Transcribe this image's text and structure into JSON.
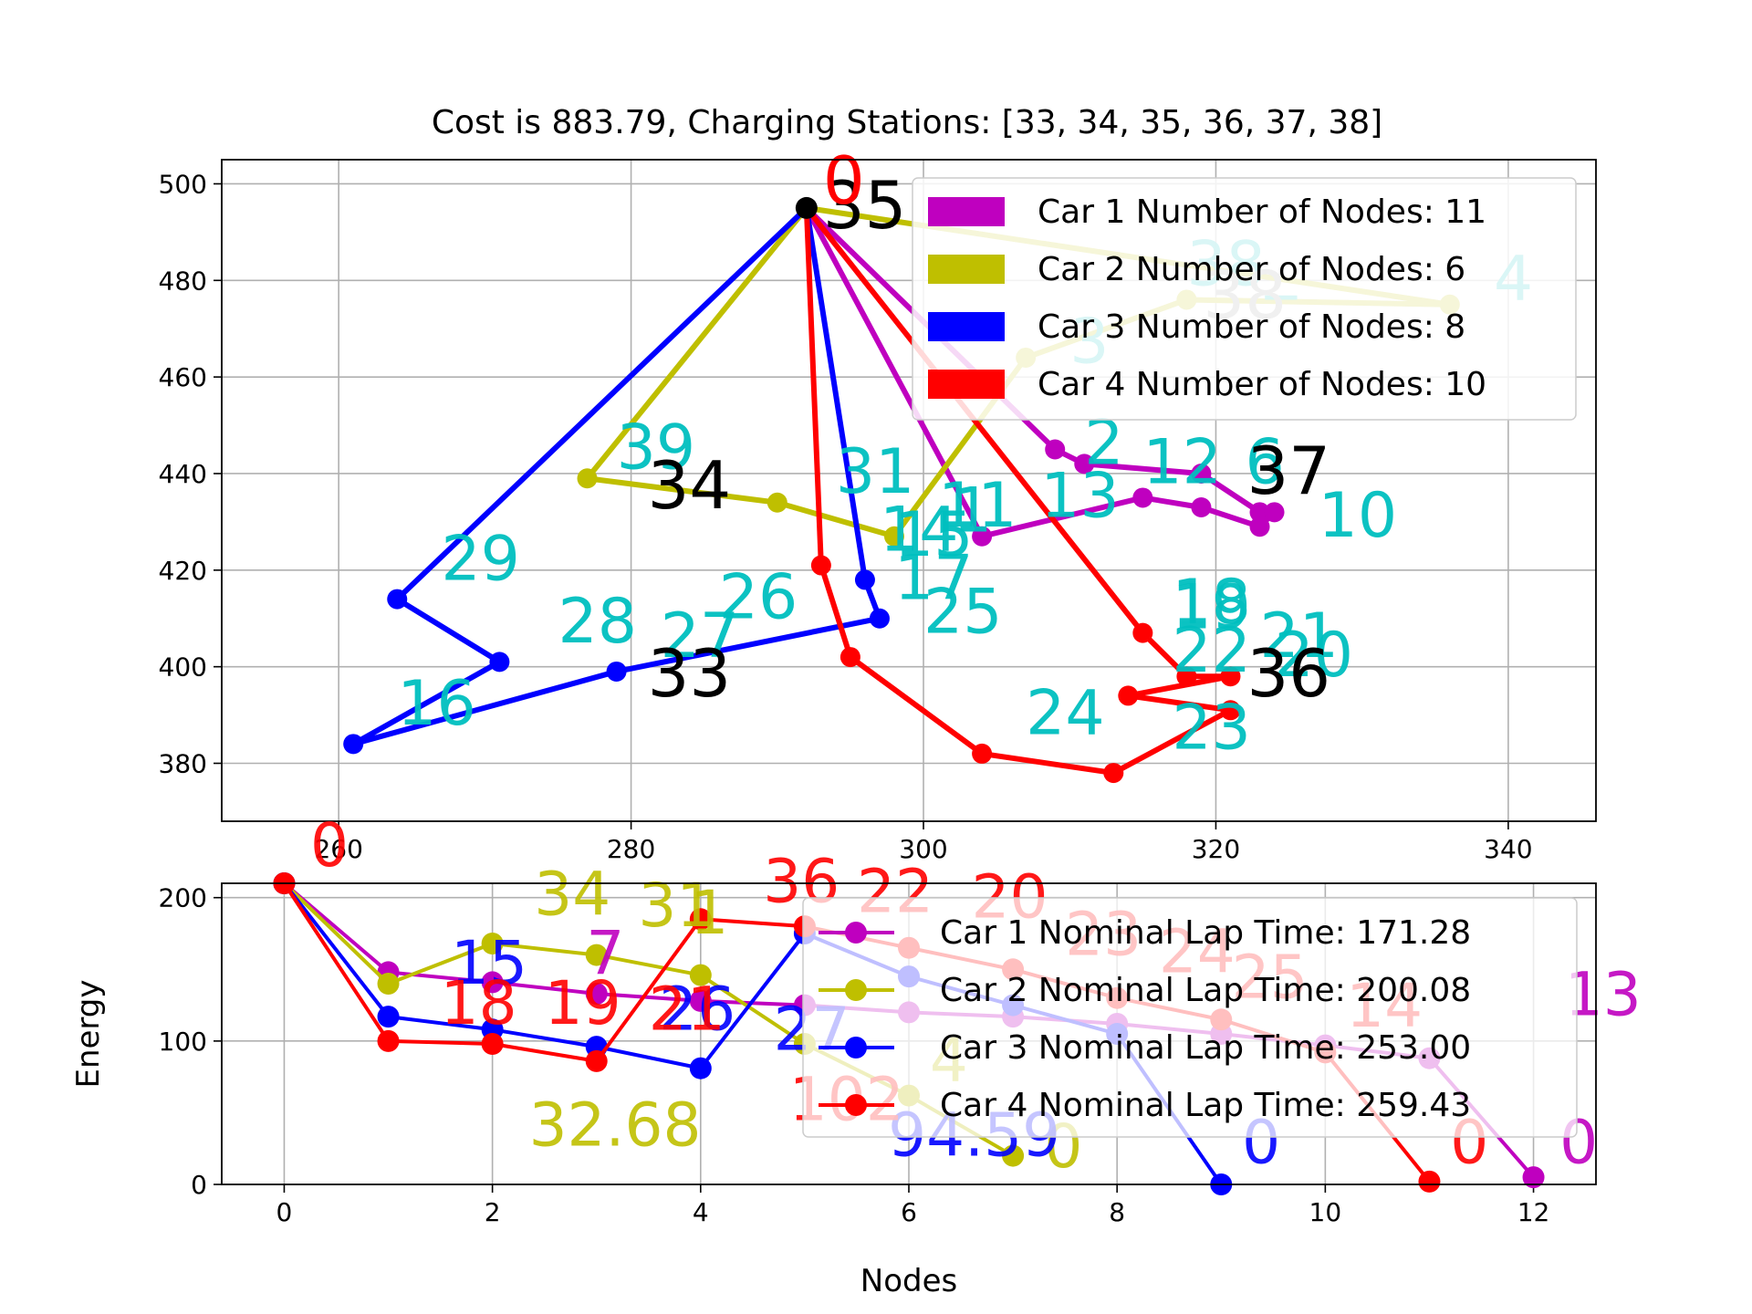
{
  "figure_title": "Cost is 883.79, Charging Stations: [33, 34, 35, 36, 37, 38]",
  "colors": {
    "car1": "#bf00bf",
    "car2": "#bfbf00",
    "car3": "#0000ff",
    "car4": "#ff0000",
    "node_label": "#00bfbf",
    "station_label": "#000000",
    "depot": "#000000",
    "grid": "#b0b0b0"
  },
  "chart_data": [
    {
      "type": "scatter",
      "title": "Cost is 883.79, Charging Stations: [33, 34, 35, 36, 37, 38]",
      "xlabel": "",
      "ylabel": "",
      "xlim": [
        252,
        346
      ],
      "ylim": [
        368,
        505
      ],
      "xticks": [
        260,
        280,
        300,
        320,
        340
      ],
      "yticks": [
        380,
        400,
        420,
        440,
        460,
        480,
        500
      ],
      "grid": true,
      "legend_position": "upper right",
      "depot": {
        "label": "0",
        "x": 292,
        "y": 495
      },
      "stations": [
        {
          "label": "33",
          "x": 280,
          "y": 398
        },
        {
          "label": "34",
          "x": 280,
          "y": 437
        },
        {
          "label": "35",
          "x": 292,
          "y": 495
        },
        {
          "label": "36",
          "x": 321,
          "y": 398
        },
        {
          "label": "37",
          "x": 321,
          "y": 440
        },
        {
          "label": "38",
          "x": 318,
          "y": 476
        }
      ],
      "series": [
        {
          "name": "Car 1 Number of Nodes: 11",
          "color_key": "car1",
          "route": [
            [
              292,
              495
            ],
            [
              309,
              445
            ],
            [
              311,
              442
            ],
            [
              319,
              440
            ],
            [
              323,
              432
            ],
            [
              324,
              432
            ],
            [
              323,
              429
            ],
            [
              319,
              433
            ],
            [
              315,
              435
            ],
            [
              304,
              427
            ],
            [
              292,
              495
            ]
          ],
          "labels": [
            {
              "t": "2",
              "x": 311,
              "y": 442
            },
            {
              "t": "12",
              "x": 315,
              "y": 438
            },
            {
              "t": "13",
              "x": 308,
              "y": 431
            },
            {
              "t": "1",
              "x": 302,
              "y": 428
            },
            {
              "t": "10",
              "x": 327,
              "y": 427
            },
            {
              "t": "6",
              "x": 322,
              "y": 438
            }
          ]
        },
        {
          "name": "Car 2 Number of Nodes: 6",
          "color_key": "car2",
          "route": [
            [
              292,
              495
            ],
            [
              336,
              475
            ],
            [
              318,
              476
            ],
            [
              307,
              464
            ],
            [
              298,
              427
            ],
            [
              290,
              434
            ],
            [
              277,
              439
            ],
            [
              292,
              495
            ]
          ],
          "labels": [
            {
              "t": "4",
              "x": 339,
              "y": 476
            },
            {
              "t": "38_",
              "x": 318,
              "y": 479
            },
            {
              "t": "3",
              "x": 310,
              "y": 463
            },
            {
              "t": "15",
              "x": 298,
              "y": 423
            },
            {
              "t": "39",
              "x": 279,
              "y": 441
            }
          ]
        },
        {
          "name": "Car 3 Number of Nodes: 8",
          "color_key": "car3",
          "route": [
            [
              292,
              495
            ],
            [
              296,
              418
            ],
            [
              297,
              410
            ],
            [
              279,
              399
            ],
            [
              261,
              384
            ],
            [
              271,
              401
            ],
            [
              264,
              414
            ],
            [
              292,
              495
            ]
          ],
          "labels": [
            {
              "t": "31",
              "x": 294,
              "y": 436
            },
            {
              "t": "14",
              "x": 297,
              "y": 424
            },
            {
              "t": "17",
              "x": 298,
              "y": 414
            },
            {
              "t": "25",
              "x": 300,
              "y": 407
            },
            {
              "t": "27",
              "x": 282,
              "y": 402
            },
            {
              "t": "26",
              "x": 286,
              "y": 410
            },
            {
              "t": "28",
              "x": 275,
              "y": 405
            },
            {
              "t": "29",
              "x": 267,
              "y": 418
            },
            {
              "t": "16",
              "x": 264,
              "y": 388
            }
          ]
        },
        {
          "name": "Car 4 Number of Nodes: 10",
          "color_key": "car4",
          "route": [
            [
              292,
              495
            ],
            [
              315,
              407
            ],
            [
              318,
              398
            ],
            [
              321,
              398
            ],
            [
              314,
              394
            ],
            [
              321,
              391
            ],
            [
              313,
              378
            ],
            [
              304,
              382
            ],
            [
              295,
              402
            ],
            [
              293,
              421
            ],
            [
              292,
              495
            ]
          ],
          "labels": [
            {
              "t": "19",
              "x": 317,
              "y": 408
            },
            {
              "t": "18",
              "x": 317,
              "y": 409
            },
            {
              "t": "22",
              "x": 317,
              "y": 399
            },
            {
              "t": "21",
              "x": 323,
              "y": 402
            },
            {
              "t": "20",
              "x": 324,
              "y": 398
            },
            {
              "t": "24",
              "x": 307,
              "y": 386
            },
            {
              "t": "23",
              "x": 317,
              "y": 383
            },
            {
              "t": "11",
              "x": 301,
              "y": 429
            }
          ]
        }
      ]
    },
    {
      "type": "line",
      "title": "",
      "xlabel": "Nodes",
      "ylabel": "Energy",
      "xlim": [
        -0.6,
        12.6
      ],
      "ylim": [
        0,
        210
      ],
      "xticks": [
        0,
        2,
        4,
        6,
        8,
        10,
        12
      ],
      "yticks": [
        0,
        100,
        200
      ],
      "grid": true,
      "legend_position": "upper right",
      "series": [
        {
          "name": "Car 1 Nominal Lap Time: 171.28",
          "color_key": "car1",
          "x": [
            0,
            1,
            2,
            3,
            4,
            5,
            6,
            7,
            8,
            9,
            10,
            11,
            12
          ],
          "y": [
            210,
            148,
            141,
            133,
            128,
            125,
            120,
            117,
            112,
            105,
            97,
            88,
            5
          ],
          "labels": [
            {
              "t": "7",
              "x": 2.9,
              "y": 147
            },
            {
              "t": "13",
              "x": 12.3,
              "y": 118
            },
            {
              "t": "0",
              "x": 12.25,
              "y": 15
            }
          ]
        },
        {
          "name": "Car 2 Nominal Lap Time: 200.08",
          "color_key": "car2",
          "x": [
            0,
            1,
            2,
            3,
            4,
            5,
            6,
            7
          ],
          "y": [
            210,
            140,
            168,
            160,
            146,
            98,
            62,
            20
          ],
          "labels": [
            {
              "t": "34",
              "x": 2.4,
              "y": 188
            },
            {
              "t": "31",
              "x": 3.4,
              "y": 180
            },
            {
              "t": "1",
              "x": 3.9,
              "y": 175
            },
            {
              "t": "32.68",
              "x": 2.35,
              "y": 27
            },
            {
              "t": "4",
              "x": 6.2,
              "y": 72
            },
            {
              "t": "0",
              "x": 7.3,
              "y": 12
            }
          ]
        },
        {
          "name": "Car 3 Nominal Lap Time: 253.00",
          "color_key": "car3",
          "x": [
            0,
            1,
            2,
            3,
            4,
            5,
            6,
            7,
            8,
            9
          ],
          "y": [
            210,
            117,
            108,
            96,
            81,
            175,
            145,
            125,
            105,
            0
          ],
          "labels": [
            {
              "t": "15",
              "x": 1.6,
              "y": 140
            },
            {
              "t": "26",
              "x": 3.6,
              "y": 108
            },
            {
              "t": "27",
              "x": 4.7,
              "y": 94
            },
            {
              "t": "94.59",
              "x": 5.8,
              "y": 20
            },
            {
              "t": "0",
              "x": 9.2,
              "y": 15
            }
          ]
        },
        {
          "name": "Car 4 Nominal Lap Time: 259.43",
          "color_key": "car4",
          "x": [
            0,
            1,
            2,
            3,
            4,
            5,
            6,
            7,
            8,
            9,
            10,
            11
          ],
          "y": [
            210,
            100,
            98,
            86,
            185,
            180,
            165,
            150,
            130,
            115,
            92,
            2
          ],
          "labels": [
            {
              "t": "0",
              "x": 0.25,
              "y": 222
            },
            {
              "t": "18",
              "x": 1.5,
              "y": 112
            },
            {
              "t": "19",
              "x": 2.5,
              "y": 112
            },
            {
              "t": "21",
              "x": 3.5,
              "y": 108
            },
            {
              "t": "36",
              "x": 4.6,
              "y": 197
            },
            {
              "t": "22",
              "x": 5.5,
              "y": 190
            },
            {
              "t": "20",
              "x": 6.6,
              "y": 186
            },
            {
              "t": "102",
              "x": 4.85,
              "y": 45
            },
            {
              "t": "23",
              "x": 7.5,
              "y": 160
            },
            {
              "t": "24",
              "x": 8.4,
              "y": 148
            },
            {
              "t": "25",
              "x": 9.1,
              "y": 130
            },
            {
              "t": "14",
              "x": 10.2,
              "y": 110
            },
            {
              "t": "0",
              "x": 11.2,
              "y": 15
            }
          ]
        }
      ]
    }
  ]
}
